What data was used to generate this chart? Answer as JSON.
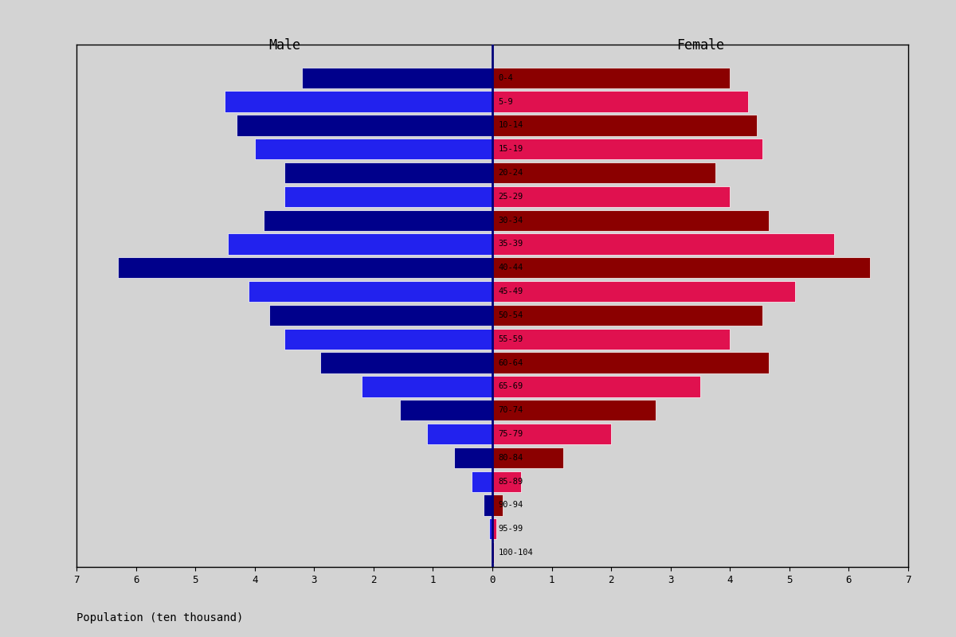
{
  "title_male": "Male",
  "title_female": "Female",
  "xlabel": "Population (ten thousand)",
  "age_groups": [
    "100-104",
    "95-99",
    "90-94",
    "85-89",
    "80-84",
    "75-79",
    "70-74",
    "65-69",
    "60-64",
    "55-59",
    "50-54",
    "45-49",
    "40-44",
    "35-39",
    "30-34",
    "25-29",
    "20-24",
    "15-19",
    "10-14",
    "5-9",
    "0-4"
  ],
  "male_values": [
    0.02,
    0.05,
    0.15,
    0.35,
    0.65,
    1.1,
    1.55,
    2.2,
    2.9,
    3.5,
    3.75,
    4.1,
    6.3,
    4.45,
    3.85,
    3.5,
    3.5,
    4.0,
    4.3,
    4.5,
    3.2
  ],
  "female_values": [
    0.03,
    0.07,
    0.18,
    0.48,
    1.2,
    2.0,
    2.75,
    3.5,
    4.65,
    4.0,
    4.55,
    5.1,
    6.35,
    5.75,
    4.65,
    4.0,
    3.75,
    4.55,
    4.45,
    4.3,
    4.0
  ],
  "xlim": 7,
  "background_color": "#d3d3d3",
  "male_colors_alt": [
    "#00008b",
    "#2222ee"
  ],
  "female_colors_alt": [
    "#8b0000",
    "#e0114f"
  ]
}
